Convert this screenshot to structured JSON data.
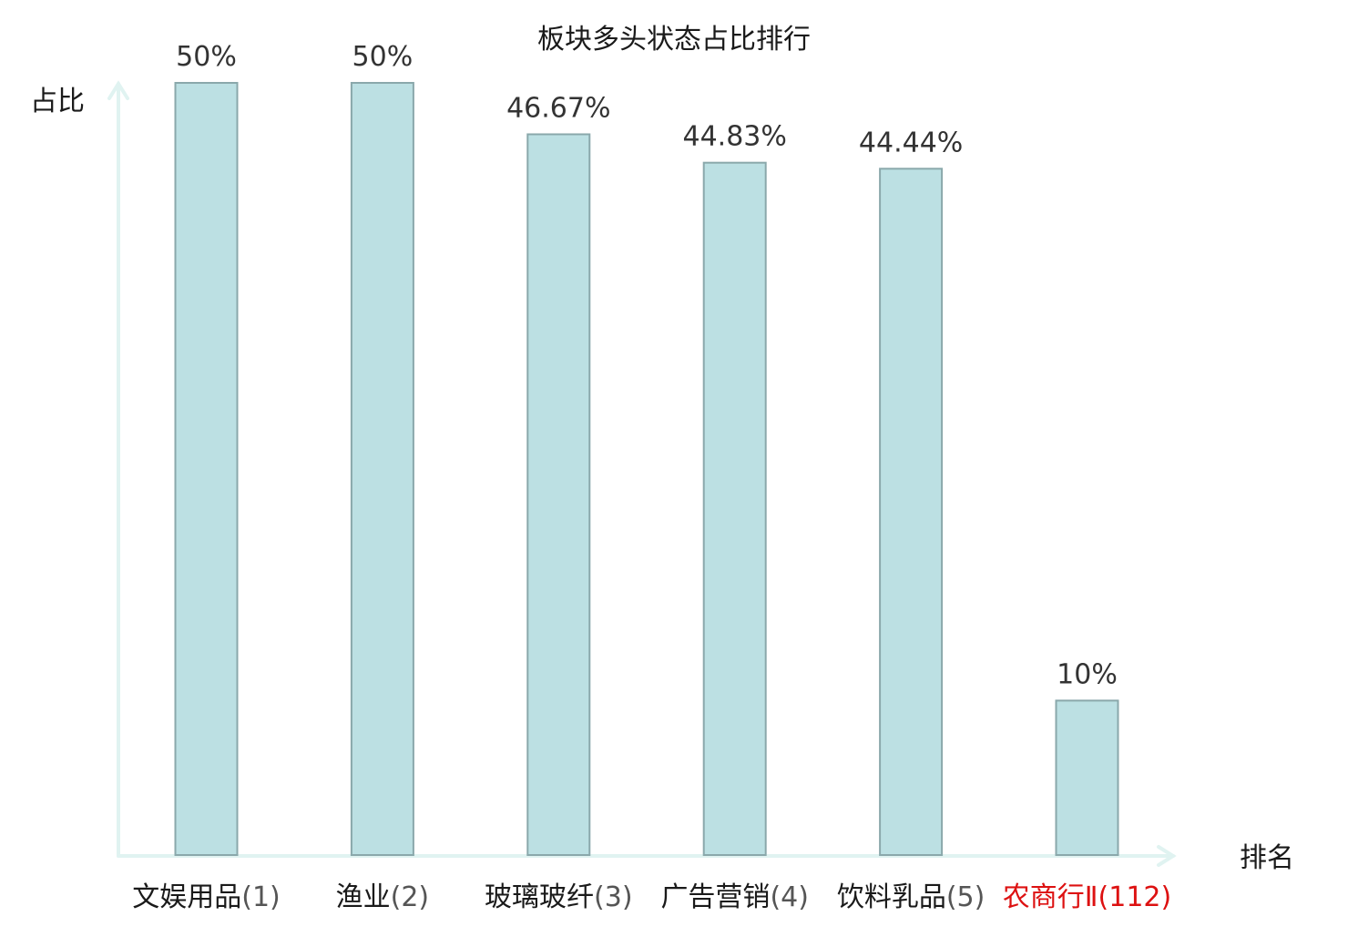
{
  "chart_data": {
    "type": "bar",
    "title": "板块多头状态占比排行",
    "ylabel": "占比",
    "xlabel": "排名",
    "ylim": [
      0,
      50
    ],
    "categories": [
      {
        "name": "文娱用品",
        "rank": "(1)",
        "highlight": false
      },
      {
        "name": "渔业",
        "rank": "(2)",
        "highlight": false
      },
      {
        "name": "玻璃玻纤",
        "rank": "(3)",
        "highlight": false
      },
      {
        "name": "广告营销",
        "rank": "(4)",
        "highlight": false
      },
      {
        "name": "饮料乳品",
        "rank": "(5)",
        "highlight": false
      },
      {
        "name": "农商行Ⅱ",
        "rank": "(112)",
        "highlight": true
      }
    ],
    "values": [
      50,
      50,
      46.67,
      44.83,
      44.44,
      10
    ],
    "value_labels": [
      "50%",
      "50%",
      "46.67%",
      "44.83%",
      "44.44%",
      "10%"
    ],
    "grid": false,
    "colors": {
      "bar_fill": "#bce0e3",
      "bar_stroke": "#8aa8ab",
      "axis": "#e0f3f1",
      "category_text": "#1a1a1a",
      "rank_text": "#555555",
      "highlight_text": "#dd1111"
    }
  }
}
